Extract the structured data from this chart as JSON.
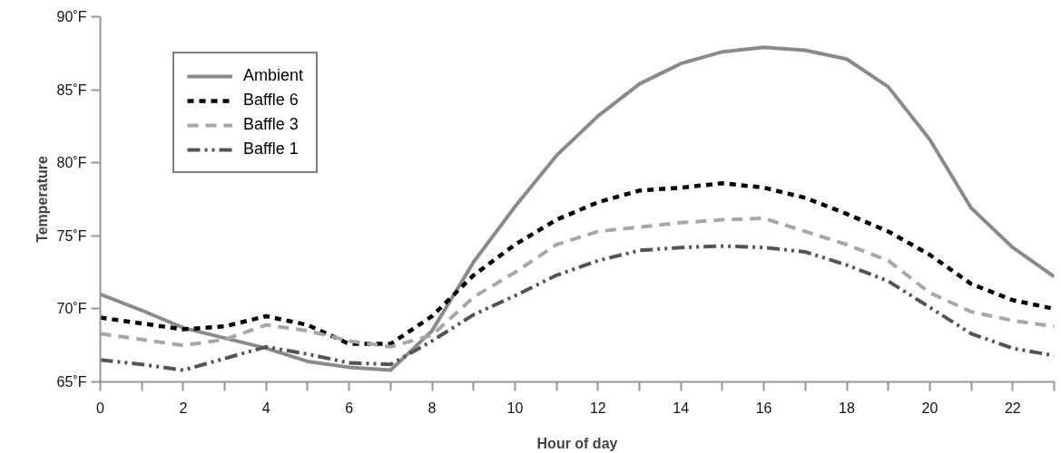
{
  "chart_data": {
    "type": "line",
    "xlabel": "Hour of day",
    "ylabel": "Temperature",
    "x": [
      0,
      1,
      2,
      3,
      4,
      5,
      6,
      7,
      8,
      9,
      10,
      11,
      12,
      13,
      14,
      15,
      16,
      17,
      18,
      19,
      20,
      21,
      22,
      23
    ],
    "series": [
      {
        "name": "Ambient",
        "color": "#8a8a8c",
        "line_style": "solid",
        "values": [
          71.0,
          69.9,
          68.7,
          68.0,
          67.3,
          66.4,
          66.0,
          65.8,
          68.5,
          73.2,
          77.0,
          80.5,
          83.2,
          85.4,
          86.8,
          87.6,
          87.9,
          87.7,
          87.1,
          85.2,
          81.6,
          76.9,
          74.2,
          72.2
        ]
      },
      {
        "name": "Baffle 6",
        "color": "#000000",
        "line_style": "dotted",
        "values": [
          69.4,
          69.0,
          68.6,
          68.8,
          69.5,
          68.9,
          67.6,
          67.6,
          69.5,
          72.3,
          74.4,
          76.1,
          77.3,
          78.1,
          78.3,
          78.6,
          78.3,
          77.6,
          76.5,
          75.3,
          73.7,
          71.7,
          70.6,
          70.0
        ]
      },
      {
        "name": "Baffle 3",
        "color": "#a7a7a9",
        "line_style": "dashed",
        "values": [
          68.3,
          67.9,
          67.5,
          67.9,
          68.9,
          68.5,
          67.8,
          67.4,
          68.2,
          70.8,
          72.5,
          74.4,
          75.3,
          75.6,
          75.9,
          76.1,
          76.2,
          75.3,
          74.4,
          73.3,
          71.1,
          69.8,
          69.2,
          68.8
        ]
      },
      {
        "name": "Baffle 1",
        "color": "#545456",
        "line_style": "dashdot",
        "values": [
          66.5,
          66.2,
          65.8,
          66.6,
          67.4,
          66.9,
          66.3,
          66.2,
          67.8,
          69.6,
          70.9,
          72.3,
          73.3,
          74.0,
          74.2,
          74.3,
          74.2,
          73.9,
          73.0,
          71.9,
          70.1,
          68.3,
          67.3,
          66.8
        ]
      }
    ],
    "xlim": [
      0,
      23
    ],
    "xticks": [
      0,
      {
        "value": 1,
        "label": null
      },
      2,
      {
        "value": 3,
        "label": null
      },
      4,
      {
        "value": 5,
        "label": null
      },
      6,
      {
        "value": 7,
        "label": null
      },
      8,
      {
        "value": 9,
        "label": null
      },
      10,
      {
        "value": 11,
        "label": null
      },
      12,
      {
        "value": 13,
        "label": null
      },
      14,
      {
        "value": 15,
        "label": null
      },
      16,
      {
        "value": 17,
        "label": null
      },
      18,
      {
        "value": 19,
        "label": null
      },
      20,
      {
        "value": 21,
        "label": null
      },
      22,
      {
        "value": 23,
        "label": null
      }
    ],
    "ylim": [
      65,
      90
    ],
    "yticks": [
      {
        "value": 65,
        "label": "65˚F"
      },
      {
        "value": 70,
        "label": "70˚F"
      },
      {
        "value": 75,
        "label": "75˚F"
      },
      {
        "value": 80,
        "label": "80˚F"
      },
      {
        "value": 85,
        "label": "85˚F"
      },
      {
        "value": 90,
        "label": "90˚F"
      }
    ],
    "grid": false,
    "legend": "top left",
    "marker": "none"
  }
}
